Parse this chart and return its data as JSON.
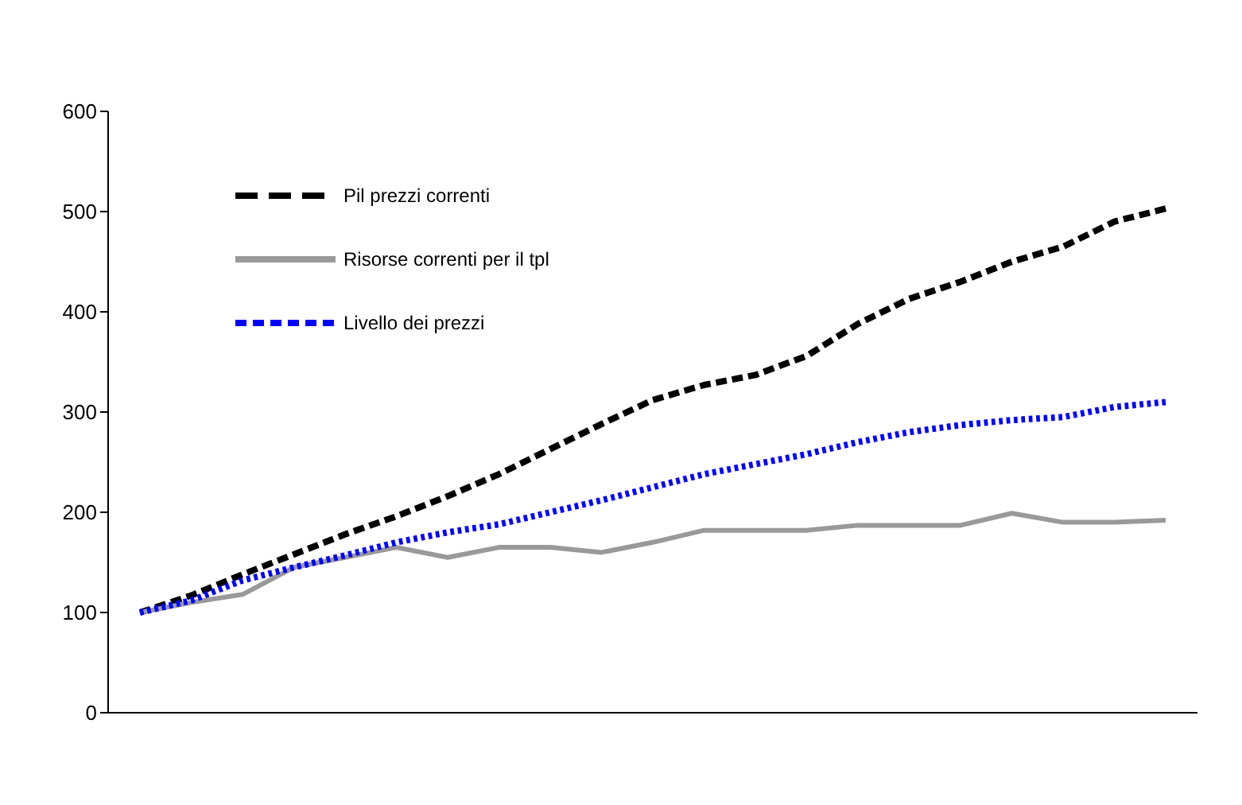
{
  "chart_data": {
    "type": "line",
    "categories": [
      null,
      null,
      null,
      null,
      null,
      null,
      null,
      null,
      null,
      null,
      null,
      null,
      null,
      null,
      null,
      null,
      null,
      null,
      null,
      null,
      null
    ],
    "ylim": [
      0,
      600
    ],
    "yticks": [
      0,
      100,
      200,
      300,
      400,
      500,
      600
    ],
    "grid": false,
    "legend": "top left",
    "tick_labels": "y",
    "marker": "none",
    "series": [
      {
        "name": "Pil prezzi correnti",
        "color": "#000000",
        "line_style": "dashed",
        "values": [
          100,
          117,
          138,
          158,
          178,
          196,
          216,
          238,
          263,
          288,
          312,
          327,
          337,
          356,
          388,
          413,
          430,
          450,
          465,
          490,
          503
        ]
      },
      {
        "name": "Risorse correnti per il tpl",
        "color": "#999999",
        "line_style": "solid",
        "values": [
          100,
          110,
          118,
          145,
          155,
          165,
          155,
          165,
          165,
          160,
          170,
          182,
          182,
          182,
          187,
          187,
          187,
          199,
          190,
          190,
          192
        ]
      },
      {
        "name": "Livello dei prezzi",
        "color": "#0000ff",
        "line_style": "dotted",
        "values": [
          100,
          112,
          132,
          145,
          157,
          170,
          180,
          188,
          200,
          212,
          225,
          238,
          248,
          258,
          270,
          280,
          287,
          292,
          295,
          305,
          310
        ]
      }
    ]
  }
}
